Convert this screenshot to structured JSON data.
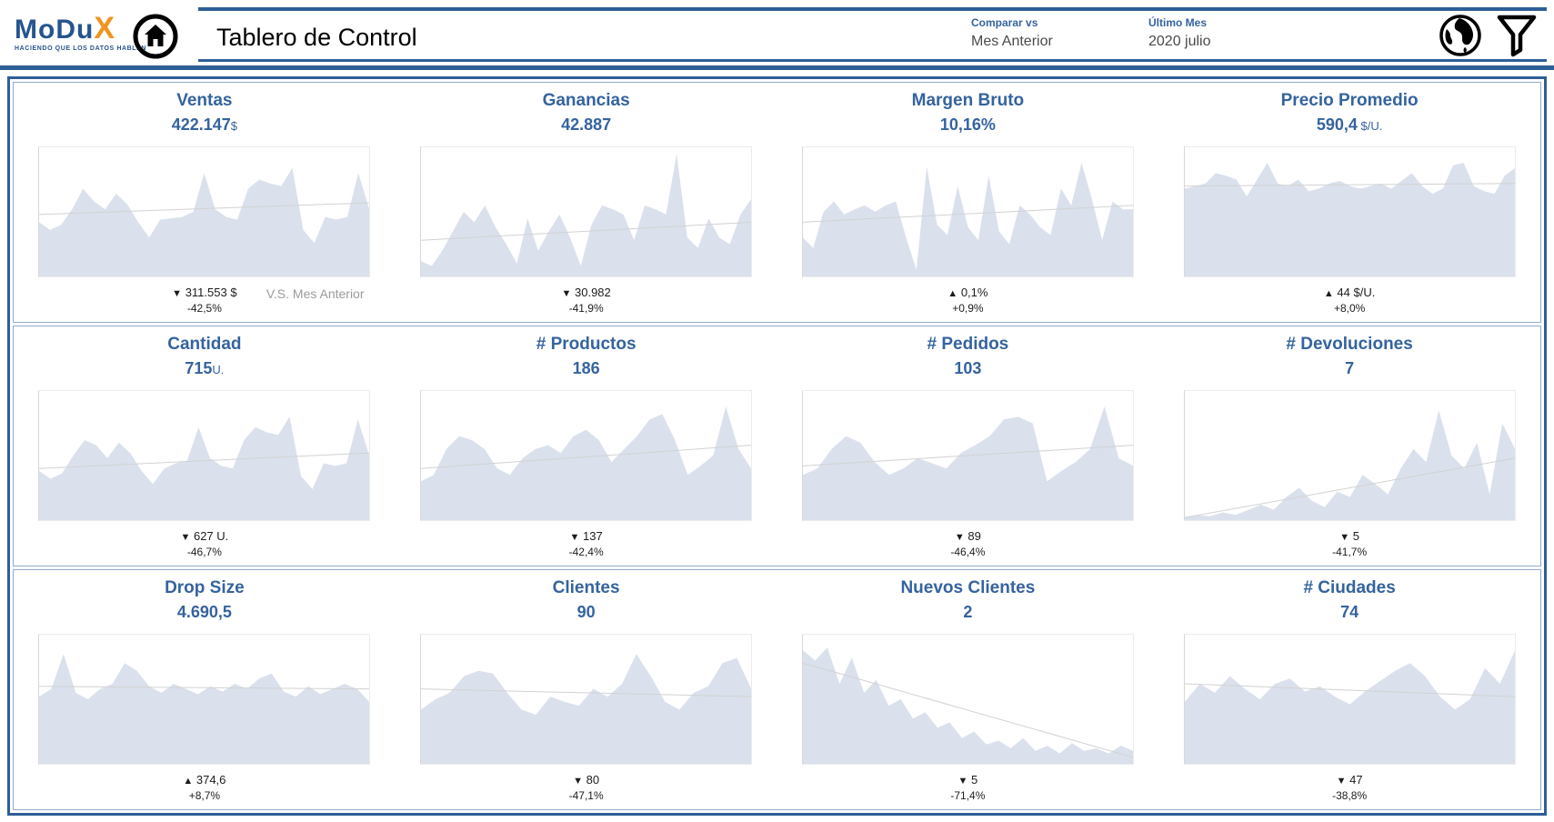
{
  "header": {
    "logo": {
      "main": "MoDu",
      "x": "X",
      "tagline": "HACIENDO QUE LOS DATOS HABLEN"
    },
    "title": "Tablero de Control",
    "compare": {
      "label": "Comparar vs",
      "value": "Mes Anterior"
    },
    "last_month": {
      "label": "Último Mes",
      "value": "2020 julio"
    },
    "icons": [
      "home-icon",
      "globe-icon",
      "filter-icon"
    ]
  },
  "colors": {
    "accent_blue": "#35639f",
    "border_blue": "#2e5e97",
    "spark_fill": "#dae1ec",
    "trend_gray": "#d2d2d2",
    "delta_text": "#1c1c1c",
    "note_gray": "#9b9b9b",
    "logo_orange": "#f0941f"
  },
  "kpis": [
    {
      "value": "422.147",
      "unit": "$",
      "delta_arrow": "▼",
      "delta_value": "311.553 $",
      "delta_pct": "-42,5%",
      "note": "V.S. Mes Anterior"
    },
    {
      "value": "42.887",
      "unit": "",
      "delta_arrow": "▼",
      "delta_value": "30.982",
      "delta_pct": "-41,9%"
    },
    {
      "value": "10,16%",
      "unit": "",
      "delta_arrow": "▲",
      "delta_value": "0,1%",
      "delta_pct": "+0,9%"
    },
    {
      "value": "590,4",
      "unit": " $/U.",
      "delta_arrow": "▲",
      "delta_value": "44 $/U.",
      "delta_pct": "+8,0%"
    },
    {
      "value": "715",
      "unit": "U.",
      "delta_arrow": "▼",
      "delta_value": "627 U.",
      "delta_pct": "-46,7%"
    },
    {
      "value": "186",
      "unit": "",
      "delta_arrow": "▼",
      "delta_value": "137",
      "delta_pct": "-42,4%"
    },
    {
      "value": "103",
      "unit": "",
      "delta_arrow": "▼",
      "delta_value": "89",
      "delta_pct": "-46,4%"
    },
    {
      "value": "7",
      "unit": "",
      "delta_arrow": "▼",
      "delta_value": "5",
      "delta_pct": "-41,7%"
    },
    {
      "value": "4.690,5",
      "unit": "",
      "delta_arrow": "▲",
      "delta_value": "374,6",
      "delta_pct": "+8,7%"
    },
    {
      "value": "90",
      "unit": "",
      "delta_arrow": "▼",
      "delta_value": "80",
      "delta_pct": "-47,1%"
    },
    {
      "value": "2",
      "unit": "",
      "delta_arrow": "▼",
      "delta_value": "5",
      "delta_pct": "-71,4%"
    },
    {
      "value": "74",
      "unit": "",
      "delta_arrow": "▼",
      "delta_value": "47",
      "delta_pct": "-38,8%"
    }
  ],
  "chart_data": [
    {
      "type": "area",
      "title": "Ventas",
      "values": [
        42,
        36,
        40,
        52,
        68,
        58,
        52,
        64,
        56,
        42,
        30,
        44,
        45,
        46,
        50,
        80,
        52,
        46,
        44,
        68,
        75,
        72,
        70,
        84,
        36,
        26,
        46,
        44,
        46,
        80,
        52
      ],
      "trend": [
        48,
        57
      ]
    },
    {
      "type": "area",
      "title": "Ganancias",
      "values": [
        12,
        8,
        20,
        35,
        50,
        42,
        55,
        38,
        25,
        10,
        45,
        20,
        35,
        48,
        30,
        8,
        40,
        55,
        52,
        48,
        28,
        55,
        52,
        48,
        95,
        30,
        22,
        45,
        30,
        25,
        48,
        60
      ],
      "trend": [
        28,
        42
      ]
    },
    {
      "type": "area",
      "title": "Margen Bruto",
      "values": [
        30,
        22,
        50,
        58,
        48,
        52,
        55,
        50,
        55,
        58,
        30,
        5,
        85,
        40,
        32,
        70,
        38,
        28,
        78,
        35,
        25,
        55,
        48,
        38,
        32,
        68,
        55,
        88,
        60,
        28,
        58,
        52,
        52
      ],
      "trend": [
        42,
        55
      ]
    },
    {
      "type": "area",
      "title": "Precio Promedio",
      "values": [
        68,
        70,
        72,
        80,
        78,
        75,
        62,
        75,
        88,
        72,
        70,
        75,
        66,
        68,
        72,
        74,
        70,
        68,
        70,
        72,
        68,
        74,
        80,
        70,
        64,
        68,
        86,
        88,
        70,
        66,
        64,
        78,
        84
      ],
      "trend": [
        70,
        72
      ]
    },
    {
      "type": "area",
      "title": "Cantidad",
      "values": [
        38,
        32,
        36,
        50,
        62,
        58,
        48,
        60,
        52,
        38,
        28,
        40,
        44,
        46,
        72,
        48,
        42,
        40,
        62,
        72,
        68,
        66,
        80,
        34,
        24,
        44,
        42,
        44,
        78,
        50
      ],
      "trend": [
        40,
        52
      ]
    },
    {
      "type": "area",
      "title": "# Productos",
      "values": [
        30,
        35,
        55,
        65,
        62,
        55,
        40,
        35,
        48,
        55,
        58,
        52,
        65,
        70,
        62,
        45,
        55,
        65,
        78,
        82,
        62,
        35,
        42,
        50,
        88,
        55,
        40
      ],
      "trend": [
        40,
        58
      ]
    },
    {
      "type": "area",
      "title": "# Pedidos",
      "values": [
        35,
        40,
        55,
        65,
        60,
        45,
        35,
        40,
        48,
        44,
        40,
        52,
        58,
        65,
        78,
        80,
        75,
        30,
        38,
        45,
        55,
        88,
        48,
        42
      ],
      "trend": [
        42,
        58
      ]
    },
    {
      "type": "area",
      "title": "# Devoluciones",
      "values": [
        2,
        4,
        3,
        6,
        4,
        8,
        12,
        8,
        18,
        25,
        15,
        10,
        22,
        18,
        35,
        28,
        20,
        40,
        55,
        45,
        85,
        50,
        40,
        60,
        20,
        75,
        55
      ],
      "trend": [
        2,
        48
      ]
    },
    {
      "type": "area",
      "title": "Drop Size",
      "values": [
        52,
        58,
        85,
        55,
        50,
        58,
        62,
        78,
        72,
        60,
        55,
        62,
        58,
        54,
        60,
        56,
        62,
        58,
        66,
        70,
        56,
        52,
        60,
        54,
        58,
        62,
        58,
        48
      ],
      "trend": [
        60,
        58
      ]
    },
    {
      "type": "area",
      "title": "Clientes",
      "values": [
        42,
        50,
        55,
        68,
        72,
        70,
        55,
        42,
        38,
        52,
        48,
        45,
        58,
        52,
        62,
        85,
        68,
        48,
        42,
        55,
        60,
        78,
        82,
        58
      ],
      "trend": [
        58,
        52
      ]
    },
    {
      "type": "area",
      "title": "Nuevos Clientes",
      "values": [
        88,
        80,
        90,
        62,
        82,
        55,
        65,
        45,
        50,
        35,
        40,
        28,
        32,
        20,
        25,
        15,
        18,
        12,
        20,
        10,
        14,
        8,
        16,
        10,
        12,
        8,
        14,
        10
      ],
      "trend": [
        78,
        5
      ]
    },
    {
      "type": "area",
      "title": "# Ciudades",
      "values": [
        48,
        62,
        55,
        68,
        58,
        50,
        62,
        66,
        56,
        60,
        52,
        46,
        56,
        64,
        72,
        78,
        68,
        52,
        42,
        50,
        74,
        62,
        88
      ],
      "trend": [
        62,
        52
      ]
    }
  ]
}
